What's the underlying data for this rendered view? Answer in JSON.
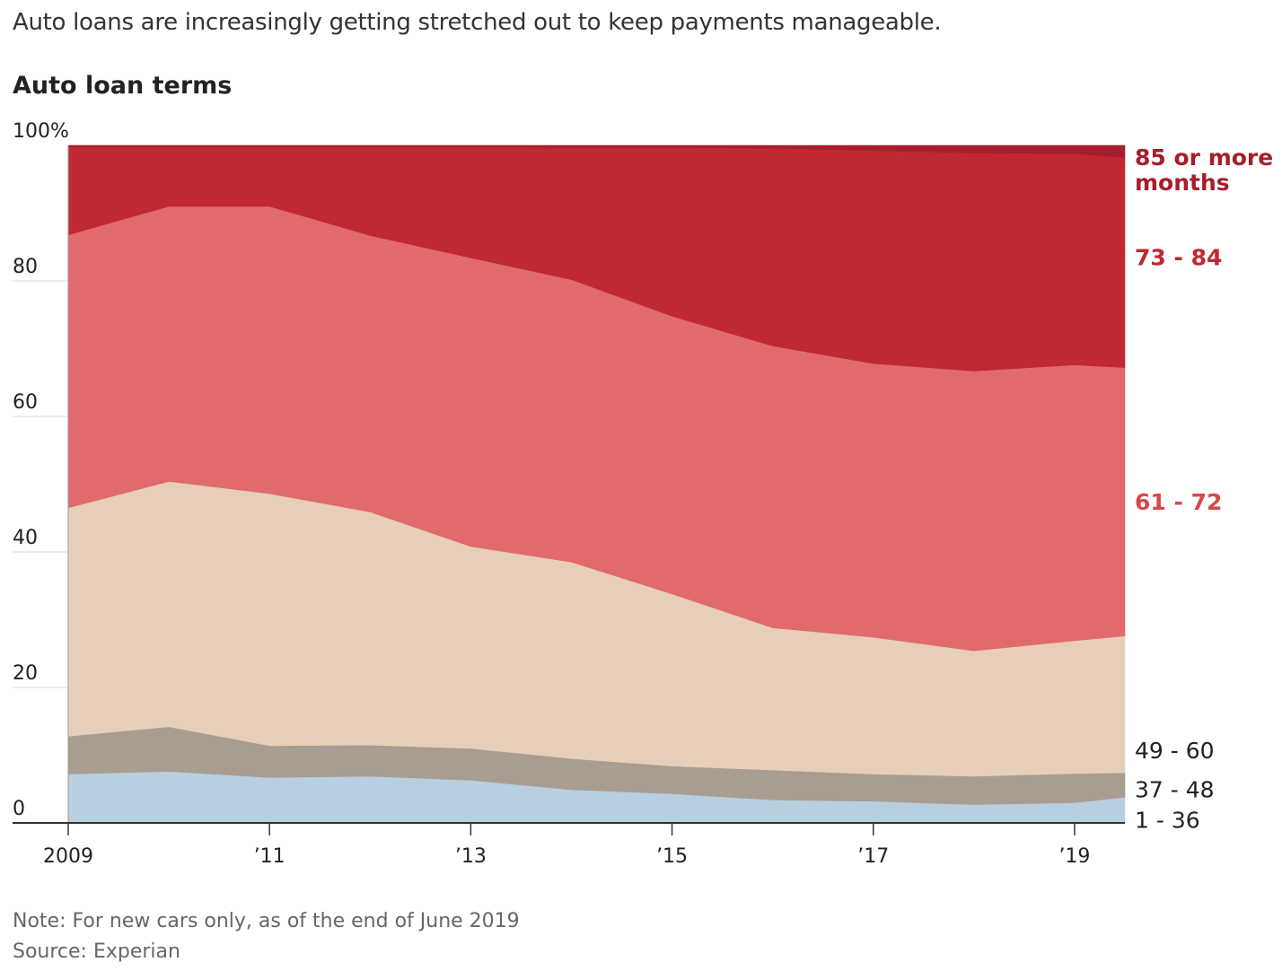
{
  "headline": "Auto loans are increasingly getting stretched out to keep payments manageable.",
  "note": "Note: For new cars only, as of the end of June 2019",
  "source": "Source: Experian",
  "chart_data": {
    "type": "area",
    "stacked": true,
    "title": "Auto loan terms",
    "xlabel": "",
    "ylabel": "",
    "x": [
      2009,
      2010,
      2011,
      2012,
      2013,
      2014,
      2015,
      2016,
      2017,
      2018,
      2019,
      2019.5
    ],
    "ylim": [
      0,
      100
    ],
    "xlim": [
      2009,
      2019.5
    ],
    "y_ticks": [
      {
        "value": 0,
        "label": "0"
      },
      {
        "value": 20,
        "label": "20"
      },
      {
        "value": 40,
        "label": "40"
      },
      {
        "value": 60,
        "label": "60"
      },
      {
        "value": 80,
        "label": "80"
      },
      {
        "value": 100,
        "label": "100%"
      }
    ],
    "x_ticks": [
      {
        "value": 2009,
        "label": "2009"
      },
      {
        "value": 2011,
        "label": "’11"
      },
      {
        "value": 2013,
        "label": "’13"
      },
      {
        "value": 2015,
        "label": "’15"
      },
      {
        "value": 2017,
        "label": "’17"
      },
      {
        "value": 2019,
        "label": "’19"
      }
    ],
    "grid": true,
    "legend": "labels-right",
    "series": [
      {
        "name": "1 - 36",
        "color": "#b8cfe0",
        "label_color": "#222222",
        "bold": false,
        "values": [
          7.2,
          7.6,
          6.7,
          6.9,
          6.3,
          4.9,
          4.3,
          3.4,
          3.2,
          2.7,
          3.0,
          3.8
        ]
      },
      {
        "name": "37 - 48",
        "color": "#a99d92",
        "label_color": "#222222",
        "bold": false,
        "values": [
          5.6,
          6.6,
          4.7,
          4.6,
          4.7,
          4.6,
          4.1,
          4.4,
          4.0,
          4.2,
          4.3,
          3.6
        ]
      },
      {
        "name": "49 - 60",
        "color": "#e6ceb8",
        "label_color": "#222222",
        "bold": false,
        "values": [
          33.7,
          36.2,
          37.2,
          34.4,
          29.8,
          29.0,
          25.4,
          21.0,
          20.2,
          18.5,
          19.6,
          20.2
        ]
      },
      {
        "name": "61 - 72",
        "color": "#e06a6c",
        "label_color": "#d9464b",
        "bold": true,
        "values": [
          40.3,
          40.6,
          42.4,
          40.8,
          42.6,
          41.7,
          41.0,
          41.6,
          40.4,
          41.3,
          40.7,
          39.6
        ]
      },
      {
        "name": "73 - 84",
        "color": "#c02832",
        "label_color": "#c02832",
        "bold": true,
        "values": [
          13.0,
          8.8,
          8.8,
          13.1,
          16.4,
          19.5,
          24.9,
          29.2,
          31.4,
          32.2,
          31.2,
          31.0
        ]
      },
      {
        "name": "85 or more months",
        "color": "#a61e2c",
        "label_color": "#a61e2c",
        "bold": true,
        "values": [
          0.2,
          0.2,
          0.2,
          0.2,
          0.2,
          0.3,
          0.3,
          0.4,
          0.8,
          1.1,
          1.2,
          1.8
        ]
      }
    ]
  }
}
